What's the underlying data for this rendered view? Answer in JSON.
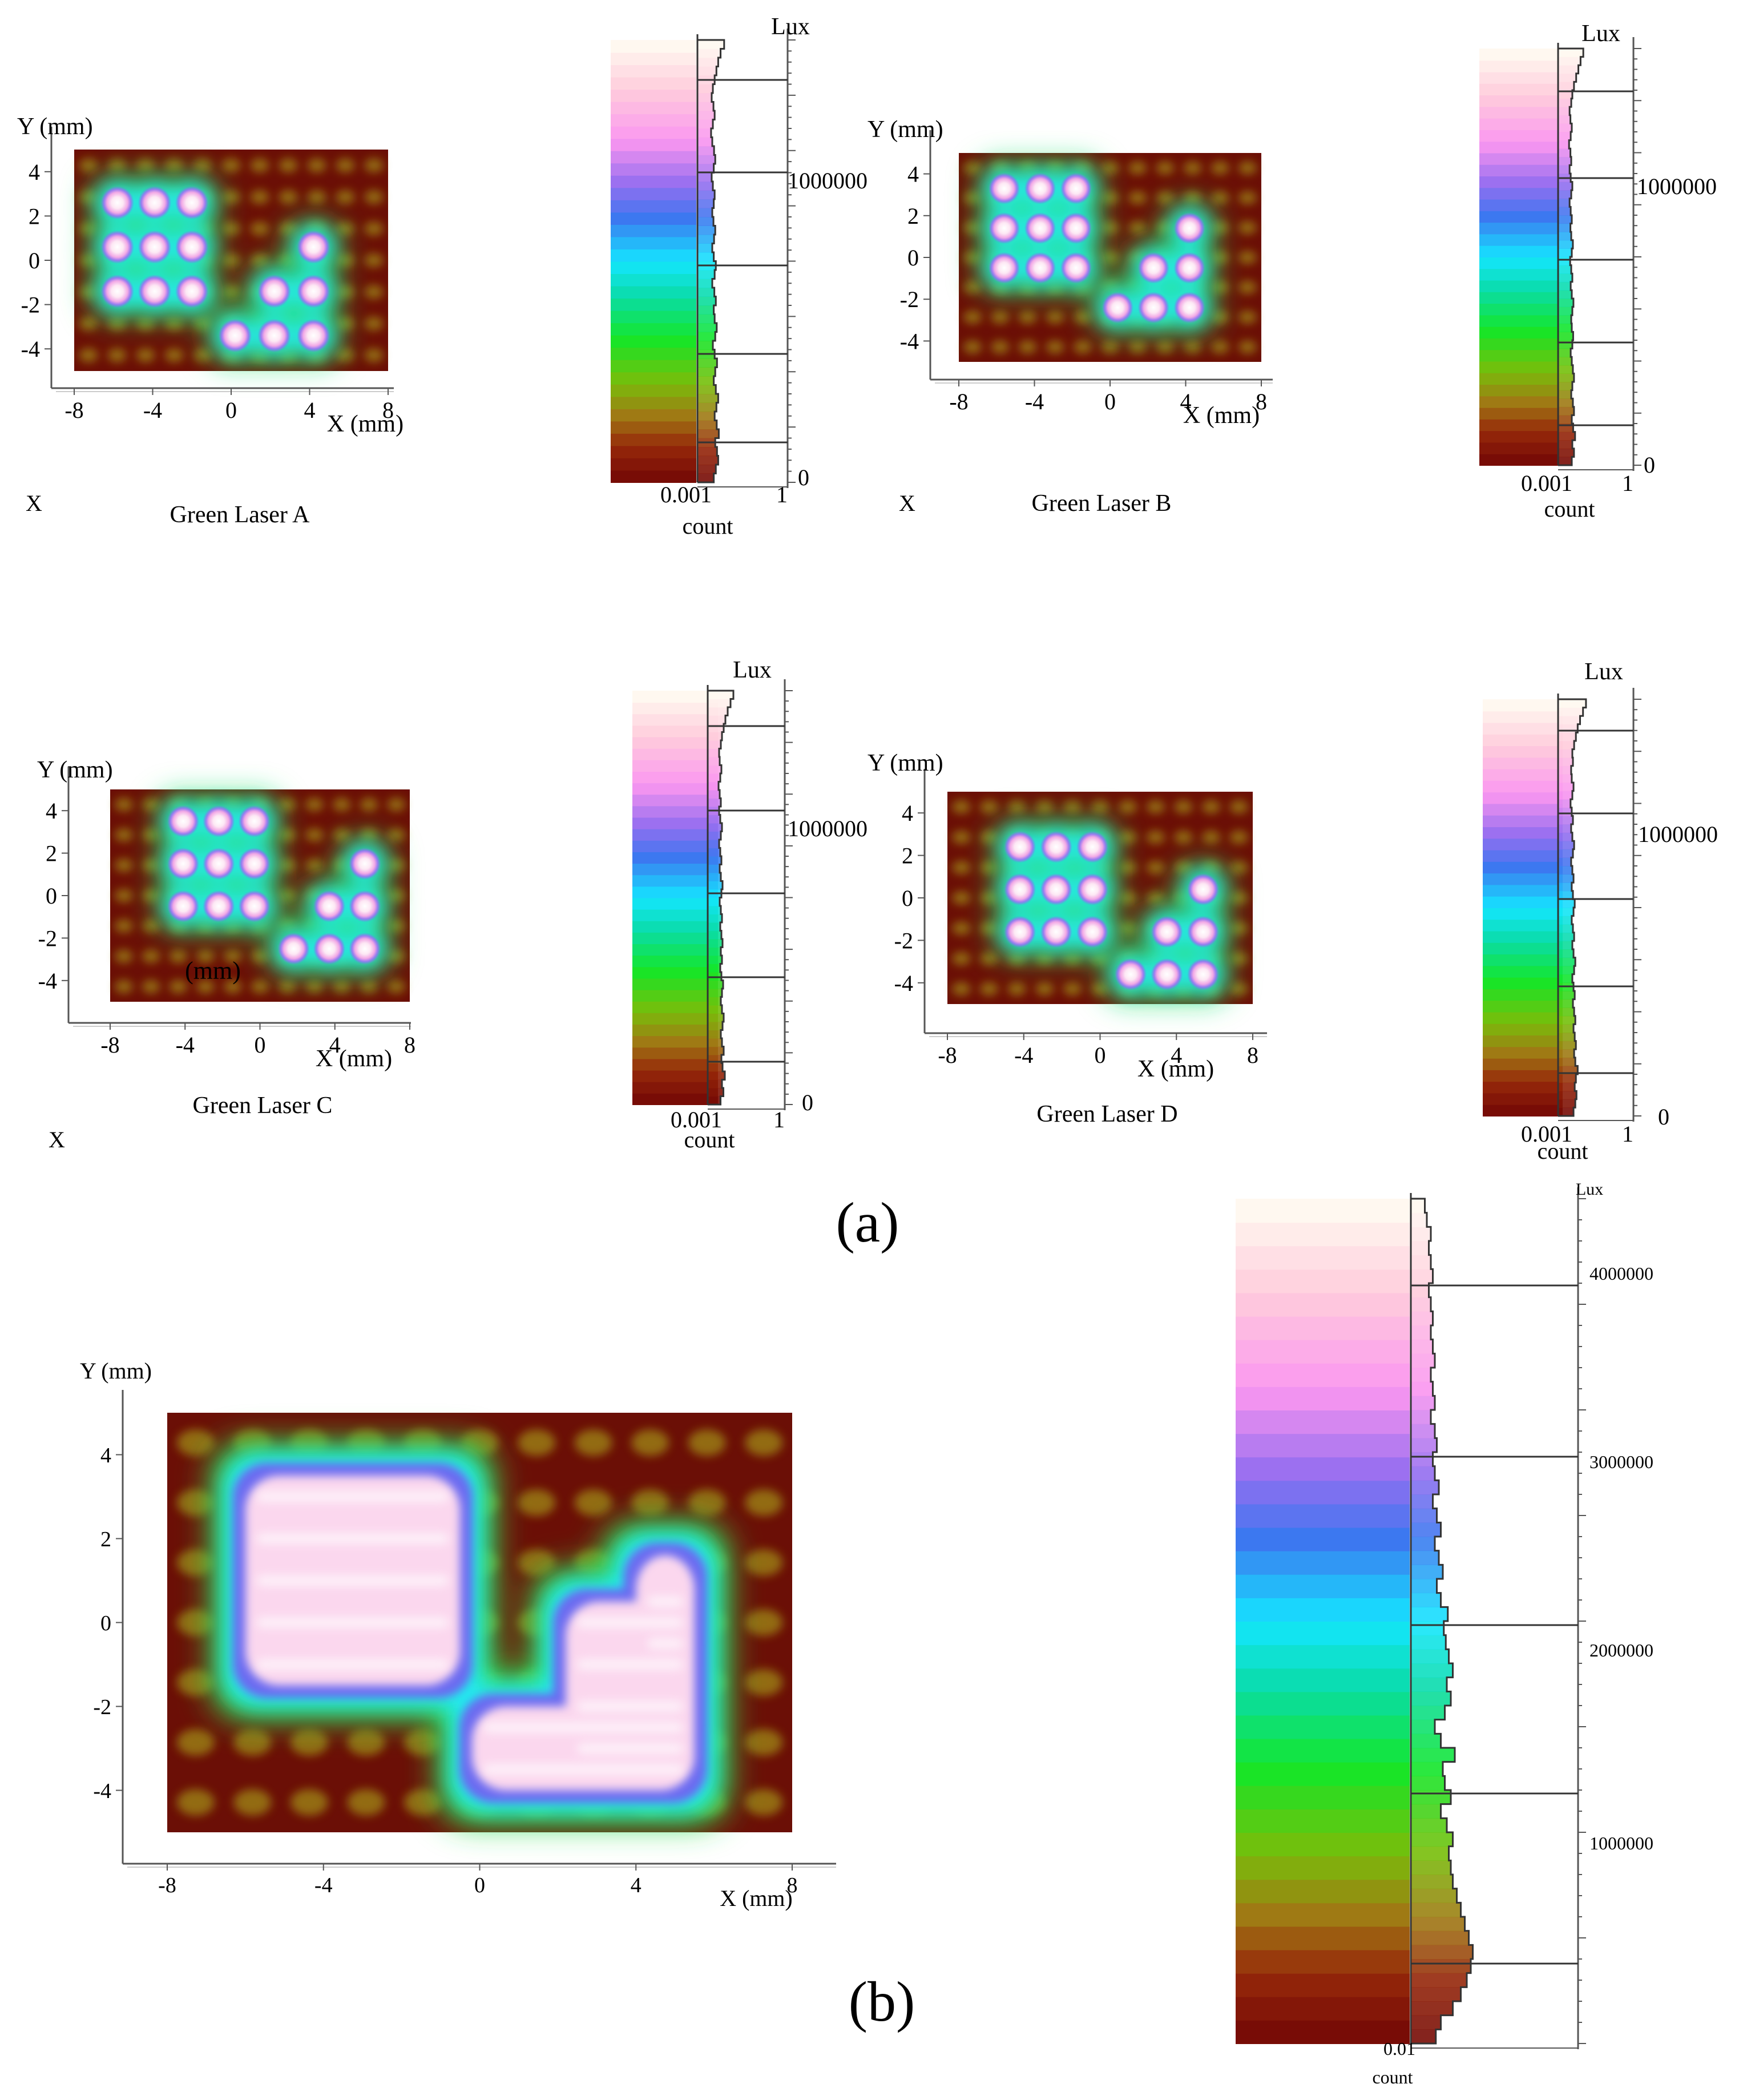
{
  "figure": {
    "panel_a_label": "(a)",
    "panel_b_label": "(b)"
  },
  "colors": {
    "heatmap_background": "#6b0f06",
    "heatmap_peak": "#fff1f6",
    "watermark": "#f2a0a0"
  },
  "chart_data": [
    {
      "type": "heatmap",
      "title": "Green Laser A",
      "xlabel": "X (mm)",
      "ylabel": "Y (mm)",
      "x_ticks": [
        "-8",
        "-4",
        "0",
        "4",
        "8"
      ],
      "y_ticks": [
        "4",
        "2",
        "0",
        "-2",
        "-4"
      ],
      "xlim": [
        -8,
        8
      ],
      "ylim": [
        -5,
        5
      ],
      "annotation": "",
      "watermark": "X",
      "spots": [
        {
          "x": -5.8,
          "y": 2.6
        },
        {
          "x": -3.9,
          "y": 2.6
        },
        {
          "x": -2.0,
          "y": 2.6
        },
        {
          "x": -5.8,
          "y": 0.6
        },
        {
          "x": -3.9,
          "y": 0.6
        },
        {
          "x": -2.0,
          "y": 0.6
        },
        {
          "x": -5.8,
          "y": -1.4
        },
        {
          "x": -3.9,
          "y": -1.4
        },
        {
          "x": -2.0,
          "y": -1.4
        },
        {
          "x": 4.2,
          "y": 0.6
        },
        {
          "x": 2.2,
          "y": -1.4
        },
        {
          "x": 4.2,
          "y": -1.4
        },
        {
          "x": 0.2,
          "y": -3.4
        },
        {
          "x": 2.2,
          "y": -3.4
        },
        {
          "x": 4.2,
          "y": -3.4
        }
      ],
      "colorbar": {
        "unit": "Lux",
        "tick_value": "1000000",
        "zero_value": "0",
        "count_ticks": [
          "0.001",
          "1"
        ],
        "count_label": "count",
        "histogram": [
          0.55,
          0.62,
          0.7,
          0.66,
          0.6,
          0.72,
          0.65,
          0.58,
          0.64,
          0.7,
          0.62,
          0.55,
          0.6,
          0.66,
          0.58,
          0.52,
          0.6,
          0.65,
          0.58,
          0.55,
          0.62,
          0.57,
          0.5,
          0.58,
          0.62,
          0.55,
          0.5,
          0.56,
          0.6,
          0.54,
          0.5,
          0.55,
          0.58,
          0.52,
          0.48,
          0.55,
          0.6,
          0.56,
          0.5,
          0.46,
          0.52,
          0.58,
          0.54,
          0.48,
          0.52,
          0.58,
          0.64,
          0.7,
          0.78,
          0.9
        ]
      }
    },
    {
      "type": "heatmap",
      "title": "Green Laser B",
      "xlabel": "X (mm)",
      "ylabel": "Y (mm)",
      "x_ticks": [
        "-8",
        "-4",
        "0",
        "4",
        "8"
      ],
      "y_ticks": [
        "4",
        "2",
        "0",
        "-2",
        "-4"
      ],
      "xlim": [
        -8,
        8
      ],
      "ylim": [
        -5,
        5
      ],
      "annotation": "",
      "watermark": "X",
      "spots": [
        {
          "x": -5.6,
          "y": 3.3
        },
        {
          "x": -3.7,
          "y": 3.3
        },
        {
          "x": -1.8,
          "y": 3.3
        },
        {
          "x": -5.6,
          "y": 1.4
        },
        {
          "x": -3.7,
          "y": 1.4
        },
        {
          "x": -1.8,
          "y": 1.4
        },
        {
          "x": -5.6,
          "y": -0.5
        },
        {
          "x": -3.7,
          "y": -0.5
        },
        {
          "x": -1.8,
          "y": -0.5
        },
        {
          "x": 4.2,
          "y": 1.4
        },
        {
          "x": 2.3,
          "y": -0.5
        },
        {
          "x": 4.2,
          "y": -0.5
        },
        {
          "x": 0.4,
          "y": -2.4
        },
        {
          "x": 2.3,
          "y": -2.4
        },
        {
          "x": 4.2,
          "y": -2.4
        }
      ],
      "colorbar": {
        "unit": "Lux",
        "tick_value": "1000000",
        "zero_value": "0",
        "count_ticks": [
          "0.001",
          "1"
        ],
        "count_label": "count",
        "histogram": [
          0.5,
          0.58,
          0.52,
          0.62,
          0.55,
          0.5,
          0.58,
          0.54,
          0.48,
          0.52,
          0.58,
          0.54,
          0.5,
          0.46,
          0.52,
          0.55,
          0.5,
          0.48,
          0.52,
          0.56,
          0.5,
          0.46,
          0.52,
          0.48,
          0.44,
          0.5,
          0.54,
          0.48,
          0.45,
          0.5,
          0.46,
          0.42,
          0.48,
          0.52,
          0.46,
          0.42,
          0.48,
          0.45,
          0.4,
          0.46,
          0.5,
          0.45,
          0.42,
          0.48,
          0.52,
          0.58,
          0.66,
          0.74,
          0.82,
          0.92
        ]
      }
    },
    {
      "type": "heatmap",
      "title": "Green Laser C",
      "xlabel": "X (mm)",
      "ylabel": "Y (mm)",
      "x_ticks": [
        "-8",
        "-4",
        "0",
        "4",
        "8"
      ],
      "y_ticks": [
        "4",
        "2",
        "0",
        "-2",
        "-4"
      ],
      "xlim": [
        -8,
        8
      ],
      "ylim": [
        -5,
        5
      ],
      "annotation": "(mm)",
      "watermark": "X",
      "spots": [
        {
          "x": -4.1,
          "y": 3.5
        },
        {
          "x": -2.2,
          "y": 3.5
        },
        {
          "x": -0.3,
          "y": 3.5
        },
        {
          "x": -4.1,
          "y": 1.5
        },
        {
          "x": -2.2,
          "y": 1.5
        },
        {
          "x": -0.3,
          "y": 1.5
        },
        {
          "x": -4.1,
          "y": -0.5
        },
        {
          "x": -2.2,
          "y": -0.5
        },
        {
          "x": -0.3,
          "y": -0.5
        },
        {
          "x": 5.6,
          "y": 1.5
        },
        {
          "x": 3.7,
          "y": -0.5
        },
        {
          "x": 5.6,
          "y": -0.5
        },
        {
          "x": 1.8,
          "y": -2.5
        },
        {
          "x": 3.7,
          "y": -2.5
        },
        {
          "x": 5.6,
          "y": -2.5
        }
      ],
      "colorbar": {
        "unit": "Lux",
        "tick_value": "1000000",
        "zero_value": "0",
        "count_ticks": [
          "0.001",
          "1"
        ],
        "count_label": "count",
        "histogram": [
          0.45,
          0.55,
          0.5,
          0.6,
          0.52,
          0.48,
          0.56,
          0.5,
          0.46,
          0.52,
          0.56,
          0.5,
          0.46,
          0.5,
          0.54,
          0.48,
          0.44,
          0.5,
          0.46,
          0.52,
          0.48,
          0.44,
          0.5,
          0.46,
          0.42,
          0.48,
          0.52,
          0.46,
          0.42,
          0.48,
          0.44,
          0.4,
          0.46,
          0.5,
          0.44,
          0.4,
          0.46,
          0.42,
          0.38,
          0.44,
          0.48,
          0.42,
          0.4,
          0.46,
          0.5,
          0.56,
          0.62,
          0.7,
          0.8,
          0.9
        ]
      }
    },
    {
      "type": "heatmap",
      "title": "Green Laser D",
      "xlabel": "X (mm)",
      "ylabel": "Y (mm)",
      "x_ticks": [
        "-8",
        "-4",
        "0",
        "4",
        "8"
      ],
      "y_ticks": [
        "4",
        "2",
        "0",
        "-2",
        "-4"
      ],
      "xlim": [
        -8,
        8
      ],
      "ylim": [
        -5,
        5
      ],
      "annotation": "",
      "watermark": "",
      "spots": [
        {
          "x": -4.2,
          "y": 2.4
        },
        {
          "x": -2.3,
          "y": 2.4
        },
        {
          "x": -0.4,
          "y": 2.4
        },
        {
          "x": -4.2,
          "y": 0.4
        },
        {
          "x": -2.3,
          "y": 0.4
        },
        {
          "x": -0.4,
          "y": 0.4
        },
        {
          "x": -4.2,
          "y": -1.6
        },
        {
          "x": -2.3,
          "y": -1.6
        },
        {
          "x": -0.4,
          "y": -1.6
        },
        {
          "x": 5.4,
          "y": 0.4
        },
        {
          "x": 3.5,
          "y": -1.6
        },
        {
          "x": 5.4,
          "y": -1.6
        },
        {
          "x": 1.6,
          "y": -3.6
        },
        {
          "x": 3.5,
          "y": -3.6
        },
        {
          "x": 5.4,
          "y": -3.6
        }
      ],
      "colorbar": {
        "unit": "Lux",
        "tick_value": "1000000",
        "zero_value": "0",
        "count_ticks": [
          "0.001",
          "1"
        ],
        "count_label": "count",
        "histogram": [
          0.52,
          0.58,
          0.62,
          0.56,
          0.6,
          0.66,
          0.58,
          0.54,
          0.6,
          0.56,
          0.52,
          0.58,
          0.54,
          0.5,
          0.56,
          0.52,
          0.48,
          0.54,
          0.58,
          0.52,
          0.48,
          0.54,
          0.5,
          0.46,
          0.52,
          0.56,
          0.5,
          0.46,
          0.52,
          0.48,
          0.44,
          0.5,
          0.54,
          0.48,
          0.44,
          0.5,
          0.46,
          0.42,
          0.48,
          0.52,
          0.46,
          0.44,
          0.5,
          0.48,
          0.54,
          0.6,
          0.66,
          0.74,
          0.84,
          0.94
        ]
      }
    },
    {
      "type": "heatmap",
      "title": "",
      "xlabel": "X (mm)",
      "ylabel": "Y (mm)",
      "x_ticks": [
        "-8",
        "-4",
        "0",
        "4",
        "8"
      ],
      "y_ticks": [
        "4",
        "2",
        "0",
        "-2",
        "-4"
      ],
      "xlim": [
        -8,
        8
      ],
      "ylim": [
        -5,
        5
      ],
      "combined_regions": [
        {
          "shape": "rect",
          "x": [
            -6.0,
            -0.5
          ],
          "y": [
            -1.5,
            3.5
          ]
        },
        {
          "shape": "rect",
          "x": [
            -0.2,
            5.5
          ],
          "y": [
            -4.0,
            -2.0
          ]
        },
        {
          "shape": "rect",
          "x": [
            2.2,
            5.5
          ],
          "y": [
            -3.5,
            0.5
          ]
        },
        {
          "shape": "rect",
          "x": [
            4.0,
            5.5
          ],
          "y": [
            -1.0,
            1.6
          ]
        }
      ],
      "colorbar": {
        "unit": "Lux",
        "tick_values": [
          "4000000",
          "3000000",
          "2000000",
          "1000000"
        ],
        "count_ticks": [
          "0.01"
        ],
        "count_label": "count",
        "histogram": [
          0.25,
          0.3,
          0.42,
          0.5,
          0.56,
          0.6,
          0.62,
          0.58,
          0.54,
          0.5,
          0.46,
          0.42,
          0.4,
          0.38,
          0.42,
          0.36,
          0.3,
          0.4,
          0.34,
          0.32,
          0.44,
          0.3,
          0.24,
          0.34,
          0.4,
          0.36,
          0.42,
          0.38,
          0.35,
          0.33,
          0.37,
          0.3,
          0.26,
          0.32,
          0.28,
          0.24,
          0.3,
          0.26,
          0.22,
          0.28,
          0.24,
          0.22,
          0.26,
          0.24,
          0.2,
          0.24,
          0.22,
          0.2,
          0.24,
          0.22,
          0.2,
          0.22,
          0.2,
          0.18,
          0.22,
          0.2,
          0.18,
          0.2,
          0.16,
          0.14
        ]
      }
    }
  ]
}
